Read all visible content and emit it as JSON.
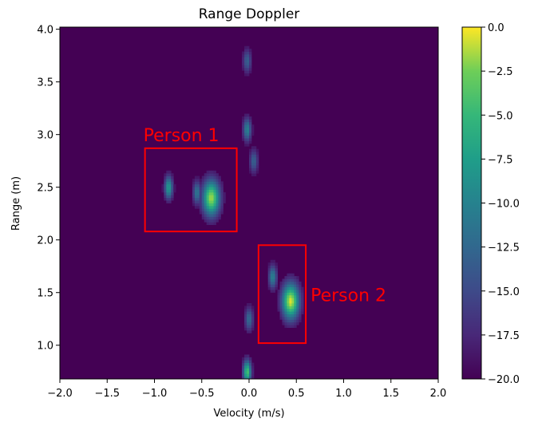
{
  "chart_data": {
    "type": "heatmap",
    "title": "Range Doppler",
    "xlabel": "Velocity (m/s)",
    "ylabel": "Range (m)",
    "xlim": [
      -2.0,
      2.0
    ],
    "ylim": [
      0.68,
      4.02
    ],
    "x_ticks": [
      -2.0,
      -1.5,
      -1.0,
      -0.5,
      0.0,
      0.5,
      1.0,
      1.5,
      2.0
    ],
    "x_tick_labels": [
      "−2.0",
      "−1.5",
      "−1.0",
      "−0.5",
      "0.0",
      "0.5",
      "1.0",
      "1.5",
      "2.0"
    ],
    "y_ticks": [
      1.0,
      1.5,
      2.0,
      2.5,
      3.0,
      3.5,
      4.0
    ],
    "y_tick_labels": [
      "1.0",
      "1.5",
      "2.0",
      "2.5",
      "3.0",
      "3.5",
      "4.0"
    ],
    "colormap": "viridis",
    "colorbar": {
      "range": [
        -20.0,
        0.0
      ],
      "ticks": [
        0.0,
        -2.5,
        -5.0,
        -7.5,
        -10.0,
        -12.5,
        -15.0,
        -17.5,
        -20.0
      ],
      "tick_labels": [
        "0.0",
        "−2.5",
        "−5.0",
        "−7.5",
        "−10.0",
        "−12.5",
        "−15.0",
        "−17.5",
        "−20.0"
      ]
    },
    "background_value": -20.0,
    "hotspots": [
      {
        "velocity": -0.4,
        "range": 2.4,
        "peak_db": -1.5
      },
      {
        "velocity": -0.55,
        "range": 2.45,
        "peak_db": -11.0
      },
      {
        "velocity": -0.85,
        "range": 2.5,
        "peak_db": -7.5
      },
      {
        "velocity": 0.44,
        "range": 1.42,
        "peak_db": -0.5
      },
      {
        "velocity": 0.25,
        "range": 1.65,
        "peak_db": -10.0
      },
      {
        "velocity": -0.02,
        "range": 3.05,
        "peak_db": -10.0
      },
      {
        "velocity": 0.05,
        "range": 2.75,
        "peak_db": -13.0
      },
      {
        "velocity": -0.02,
        "range": 3.7,
        "peak_db": -13.0
      },
      {
        "velocity": 0.0,
        "range": 1.25,
        "peak_db": -12.0
      },
      {
        "velocity": -0.02,
        "range": 0.75,
        "peak_db": -4.0
      }
    ],
    "annotations": [
      {
        "label": "Person 1",
        "color": "#ff0000",
        "velocity_range": [
          -1.1,
          -0.13
        ],
        "range_range": [
          2.08,
          2.87
        ]
      },
      {
        "label": "Person 2",
        "color": "#ff0000",
        "velocity_range": [
          0.1,
          0.6
        ],
        "range_range": [
          1.02,
          1.95
        ]
      }
    ]
  }
}
